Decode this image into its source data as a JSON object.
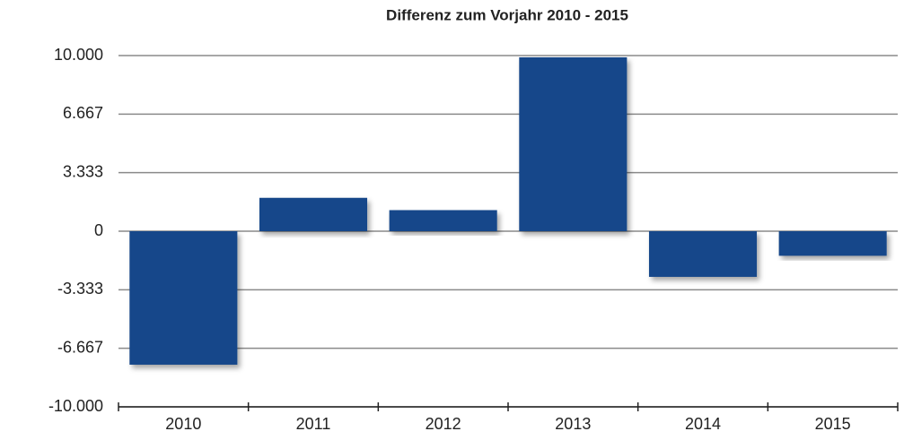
{
  "chart_data": {
    "type": "bar",
    "title": "Differenz zum Vorjahr 2010 - 2015",
    "categories": [
      "2010",
      "2011",
      "2012",
      "2013",
      "2014",
      "2015"
    ],
    "values": [
      -7600,
      1900,
      1200,
      9900,
      -2600,
      -1400
    ],
    "color": "#15478a",
    "ylim": [
      -10000,
      10000
    ],
    "yticks": [
      {
        "value": -10000,
        "label": "-10.000"
      },
      {
        "value": -6667,
        "label": "-6.667"
      },
      {
        "value": -3333,
        "label": "-3.333"
      },
      0,
      {
        "value": 3333,
        "label": "3.333"
      },
      {
        "value": 6667,
        "label": "6.667"
      },
      {
        "value": 10000,
        "label": "10.000"
      }
    ],
    "grid": true
  }
}
